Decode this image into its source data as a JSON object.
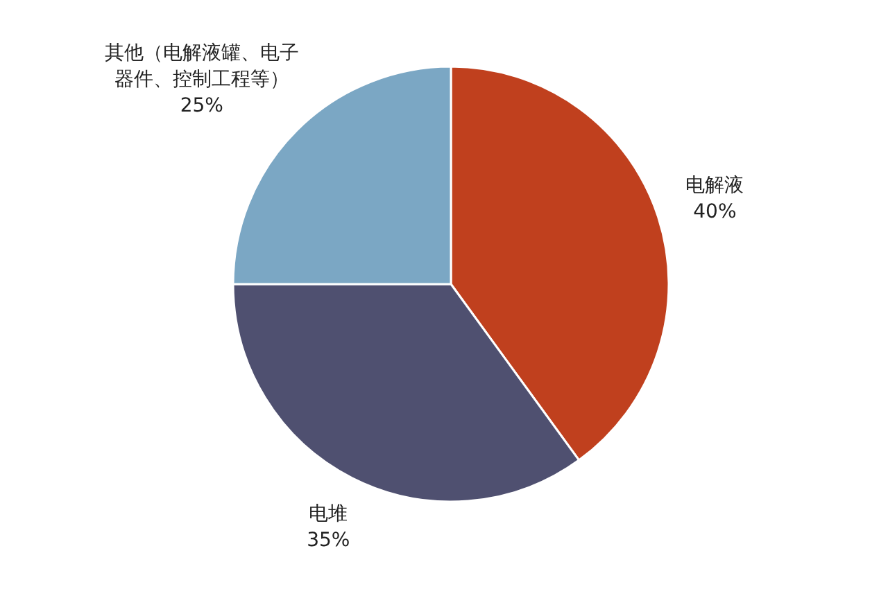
{
  "chart_data": {
    "type": "pie",
    "categories": [
      "电解液",
      "电堆",
      "其他（电解液罐、电子器件、控制工程等）"
    ],
    "values": [
      40,
      35,
      25
    ],
    "value_labels": [
      "40%",
      "35%",
      "25%"
    ],
    "colors": [
      "#c0401e",
      "#4f5070",
      "#7ba7c4"
    ],
    "legend": false
  }
}
